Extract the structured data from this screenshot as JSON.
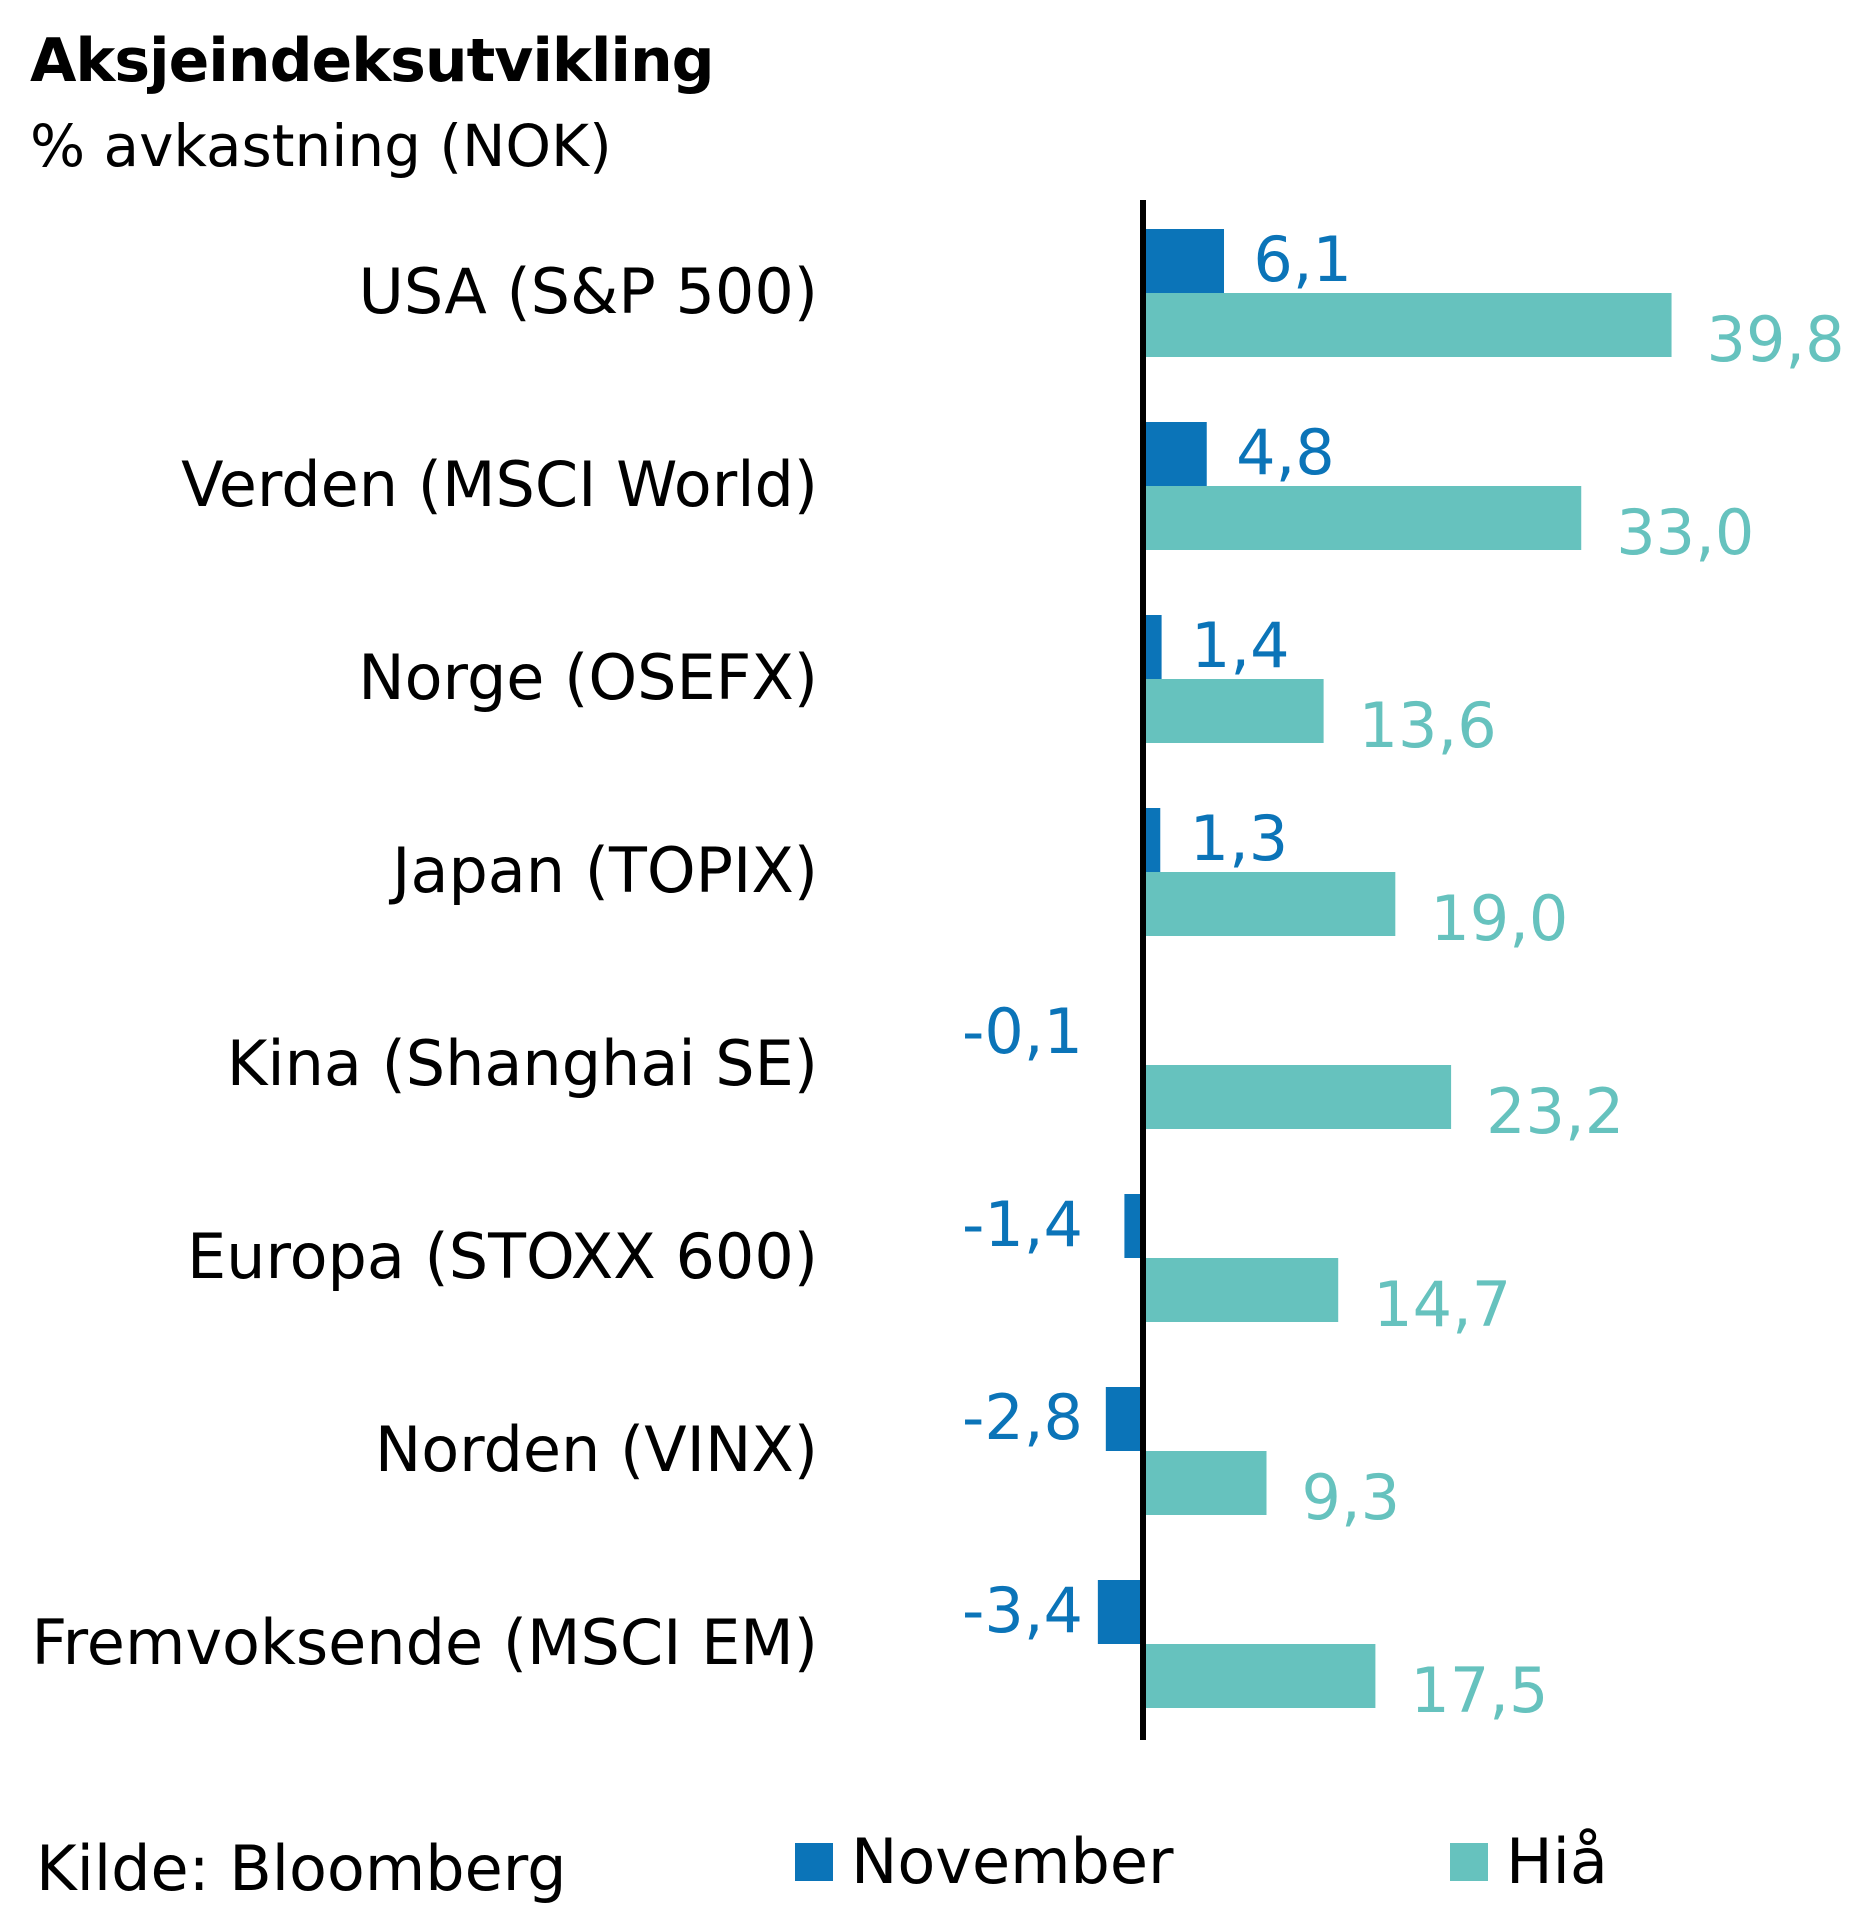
{
  "title": "Aksjeindeksutvikling",
  "subtitle": "% avkastning (NOK)",
  "source": "Kilde: Bloomberg",
  "colors": {
    "november": "#0B74B8",
    "hia": "#66C2BE",
    "axis": "#000000"
  },
  "chart_data": {
    "type": "bar",
    "orientation": "horizontal",
    "title": "Aksjeindeksutvikling",
    "subtitle": "% avkastning (NOK)",
    "categories": [
      "USA (S&P 500)",
      "Verden (MSCI World)",
      "Norge (OSEFX)",
      "Japan (TOPIX)",
      "Kina (Shanghai SE)",
      "Europa (STOXX 600)",
      "Norden (VINX)",
      "Fremvoksende (MSCI EM)"
    ],
    "series": [
      {
        "name": "November",
        "values": [
          6.1,
          4.8,
          1.4,
          1.3,
          -0.1,
          -1.4,
          -2.8,
          -3.4
        ],
        "labels": [
          "6,1",
          "4,8",
          "1,4",
          "1,3",
          "-0,1",
          "-1,4",
          "-2,8",
          "-3,4"
        ]
      },
      {
        "name": "Hiå",
        "values": [
          39.8,
          33.0,
          13.6,
          19.0,
          23.2,
          14.7,
          9.3,
          17.5
        ],
        "labels": [
          "39,8",
          "33,0",
          "13,6",
          "19,0",
          "23,2",
          "14,7",
          "9,3",
          "17,5"
        ]
      }
    ],
    "legend": "bottom",
    "grid": false
  }
}
